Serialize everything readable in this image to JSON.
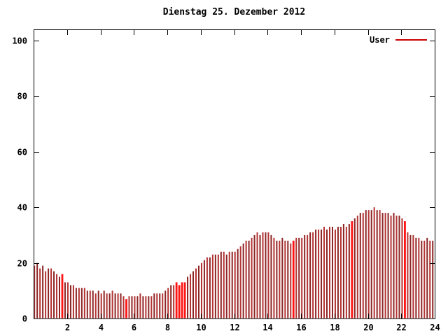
{
  "title": "Dienstag 25. Dezember 2012",
  "legend": {
    "label": "User"
  },
  "colors": {
    "background": "#ffffff",
    "axis": "#000000",
    "bar": "#b43232",
    "bar_dark": "#8c2424",
    "bar_bright": "#ff1414",
    "legend_line": "#cc0000"
  },
  "chart_data": {
    "type": "bar",
    "title": "Dienstag 25. Dezember 2012",
    "xlabel": "",
    "ylabel": "",
    "xlim": [
      0,
      24
    ],
    "ylim": [
      0,
      104
    ],
    "grid": false,
    "legend_position": "top-right-inside",
    "x_ticks": [
      2,
      4,
      6,
      8,
      10,
      12,
      14,
      16,
      18,
      20,
      22,
      24
    ],
    "y_ticks": [
      0,
      20,
      40,
      60,
      80,
      100
    ],
    "x_step_hours": 0.1666667,
    "series": [
      {
        "name": "User",
        "values": [
          19,
          20,
          18,
          19,
          17,
          18,
          18,
          17,
          16,
          15,
          16,
          13,
          13,
          12,
          12,
          11,
          11,
          11,
          11,
          10,
          10,
          10,
          9,
          10,
          9,
          10,
          9,
          9,
          10,
          9,
          9,
          9,
          8,
          7,
          8,
          8,
          8,
          8,
          9,
          8,
          8,
          8,
          8,
          9,
          9,
          9,
          9,
          10,
          11,
          12,
          12,
          13,
          12,
          13,
          13,
          15,
          16,
          17,
          18,
          19,
          20,
          21,
          22,
          22,
          23,
          23,
          23,
          24,
          24,
          23,
          24,
          24,
          24,
          25,
          26,
          27,
          28,
          28,
          29,
          30,
          31,
          30,
          31,
          31,
          31,
          30,
          29,
          28,
          28,
          29,
          28,
          28,
          27,
          28,
          29,
          29,
          29,
          30,
          30,
          31,
          31,
          32,
          32,
          32,
          33,
          32,
          33,
          33,
          32,
          33,
          33,
          34,
          33,
          34,
          35,
          36,
          37,
          38,
          38,
          39,
          39,
          39,
          40,
          39,
          39,
          38,
          38,
          38,
          37,
          38,
          37,
          37,
          36,
          35,
          31,
          30,
          30,
          29,
          29,
          28,
          28,
          29,
          28,
          28
        ],
        "highlight_indices": [
          10,
          33,
          51,
          52,
          53,
          54,
          93,
          114,
          133
        ]
      }
    ]
  }
}
